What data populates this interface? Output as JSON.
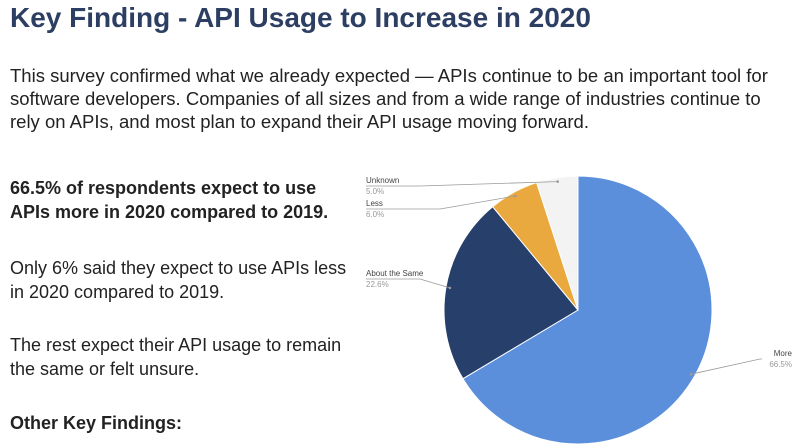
{
  "page": {
    "title": "Key Finding - API Usage to Increase in 2020",
    "intro": "This survey confirmed what we already expected — APIs continue to be an important tool for software developers. Companies of all sizes and from a wide range of industries continue to rely on APIs, and most plan to expand their API usage moving forward.",
    "finding_1": "66.5% of respondents expect to use APIs more in 2020 compared to 2019.",
    "finding_2": "Only 6% said they expect to use APIs less in 2020 compared to 2019.",
    "finding_3": "The rest expect their API usage to remain the same or felt unsure.",
    "other_heading": "Other Key Findings:"
  },
  "chart_data": {
    "type": "pie",
    "title": "",
    "start": "top, clockwise",
    "slices": [
      {
        "label": "More",
        "value": 66.5,
        "value_label": "66.5%",
        "color": "#5b8fdc"
      },
      {
        "label": "About the Same",
        "value": 22.6,
        "value_label": "22.6%",
        "color": "#263f6b"
      },
      {
        "label": "Less",
        "value": 6.0,
        "value_label": "6.0%",
        "color": "#e9a93e"
      },
      {
        "label": "Unknown",
        "value": 5.0,
        "value_label": "5.0%",
        "color": "#f3f3f3"
      }
    ]
  }
}
